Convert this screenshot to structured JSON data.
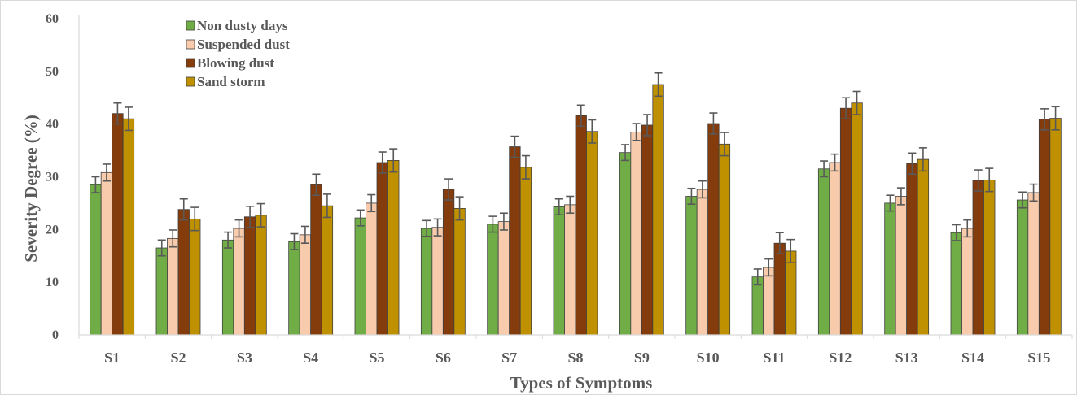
{
  "chart_data": {
    "type": "bar",
    "xlabel": "Types of Symptoms",
    "ylabel": "Severity Degree (%)",
    "ylim": [
      0,
      60
    ],
    "yticks": [
      0,
      10,
      20,
      30,
      40,
      50,
      60
    ],
    "grid": false,
    "legend_position": "top-left",
    "categories": [
      "S1",
      "S2",
      "S3",
      "S4",
      "S5",
      "S6",
      "S7",
      "S8",
      "S9",
      "S10",
      "S11",
      "S12",
      "S13",
      "S14",
      "S15"
    ],
    "series": [
      {
        "name": "Non dusty days",
        "color": "#70ad47",
        "values": [
          28.5,
          16.5,
          18.0,
          17.7,
          22.2,
          20.2,
          21.0,
          24.3,
          34.6,
          26.3,
          11.0,
          31.5,
          25.0,
          19.4,
          25.6
        ],
        "errors": [
          1.5,
          1.5,
          1.5,
          1.5,
          1.5,
          1.5,
          1.5,
          1.5,
          1.5,
          1.5,
          1.5,
          1.5,
          1.5,
          1.5,
          1.5
        ]
      },
      {
        "name": "Suspended dust",
        "color": "#f8cbad",
        "values": [
          30.8,
          18.3,
          20.2,
          19.0,
          25.0,
          20.4,
          21.5,
          24.7,
          38.5,
          27.6,
          12.8,
          32.7,
          26.3,
          20.2,
          27.0
        ],
        "errors": [
          1.6,
          1.6,
          1.6,
          1.6,
          1.6,
          1.6,
          1.6,
          1.6,
          1.6,
          1.6,
          1.6,
          1.6,
          1.6,
          1.6,
          1.6
        ]
      },
      {
        "name": "Blowing dust",
        "color": "#843c0c",
        "values": [
          42.0,
          23.8,
          22.4,
          28.5,
          32.7,
          27.6,
          35.7,
          41.6,
          39.8,
          40.1,
          17.4,
          43.0,
          32.5,
          29.3,
          40.9
        ],
        "errors": [
          2.0,
          2.0,
          2.0,
          2.0,
          2.0,
          2.0,
          2.0,
          2.0,
          2.0,
          2.0,
          2.0,
          2.0,
          2.0,
          2.0,
          2.0
        ]
      },
      {
        "name": "Sand storm",
        "color": "#bf9000",
        "values": [
          41.0,
          22.0,
          22.7,
          24.5,
          33.1,
          24.0,
          31.8,
          38.6,
          47.5,
          36.2,
          15.9,
          44.0,
          33.3,
          29.4,
          41.1
        ],
        "errors": [
          2.2,
          2.2,
          2.2,
          2.2,
          2.2,
          2.2,
          2.2,
          2.2,
          2.2,
          2.2,
          2.2,
          2.2,
          2.2,
          2.2,
          2.2
        ]
      }
    ]
  },
  "colors": {
    "axis": "#d9d9d9",
    "error_bar": "#595959",
    "bar_outline": "#404040",
    "text": "#595959",
    "border": "#d9d9d9"
  }
}
